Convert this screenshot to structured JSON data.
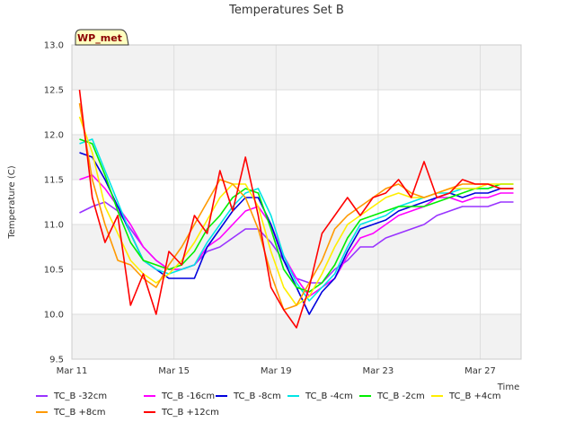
{
  "chart_data": {
    "type": "line",
    "title": "Temperatures Set B",
    "xlabel": "Time",
    "ylabel": "Temperature (C)",
    "badge": "WP_met",
    "xlim": [
      0,
      17.6
    ],
    "ylim": [
      9.5,
      13.0
    ],
    "y_ticks": [
      9.5,
      10.0,
      10.5,
      11.0,
      11.5,
      12.0,
      12.5,
      13.0
    ],
    "x_ticks": [
      {
        "value": 0,
        "label": "Mar 11"
      },
      {
        "value": 4,
        "label": "Mar 15"
      },
      {
        "value": 8,
        "label": "Mar 19"
      },
      {
        "value": 12,
        "label": "Mar 23"
      },
      {
        "value": 16,
        "label": "Mar 27"
      }
    ],
    "grid": true,
    "banded_background": true,
    "legend_position": "bottom",
    "x_day": [
      0.3,
      0.8,
      1.3,
      1.8,
      2.3,
      2.8,
      3.3,
      3.8,
      4.3,
      4.8,
      5.3,
      5.8,
      6.3,
      6.8,
      7.3,
      7.8,
      8.3,
      8.8,
      9.3,
      9.8,
      10.3,
      10.8,
      11.3,
      11.8,
      12.3,
      12.8,
      13.3,
      13.8,
      14.3,
      14.8,
      15.3,
      15.8,
      16.3,
      16.8,
      17.3
    ],
    "series": [
      {
        "name": "TC_B -32cm",
        "color": "#9933ff",
        "values": [
          11.13,
          11.2,
          11.25,
          11.15,
          10.95,
          10.75,
          10.6,
          10.5,
          10.5,
          10.55,
          10.7,
          10.75,
          10.85,
          10.95,
          10.95,
          10.8,
          10.6,
          10.4,
          10.35,
          10.35,
          10.5,
          10.6,
          10.75,
          10.75,
          10.85,
          10.9,
          10.95,
          11.0,
          11.1,
          11.15,
          11.2,
          11.2,
          11.2,
          11.25,
          11.25
        ]
      },
      {
        "name": "TC_B -16cm",
        "color": "#ff00ff",
        "values": [
          11.5,
          11.55,
          11.4,
          11.2,
          11.0,
          10.75,
          10.6,
          10.5,
          10.5,
          10.55,
          10.75,
          10.85,
          11.0,
          11.15,
          11.2,
          11.0,
          10.65,
          10.4,
          10.2,
          10.3,
          10.4,
          10.65,
          10.85,
          10.9,
          11.0,
          11.1,
          11.15,
          11.2,
          11.3,
          11.3,
          11.25,
          11.3,
          11.3,
          11.35,
          11.35
        ]
      },
      {
        "name": "TC_B -8cm",
        "color": "#0000dd",
        "values": [
          11.8,
          11.75,
          11.5,
          11.2,
          10.9,
          10.6,
          10.5,
          10.4,
          10.4,
          10.4,
          10.75,
          10.95,
          11.15,
          11.3,
          11.3,
          11.0,
          10.6,
          10.3,
          10.0,
          10.25,
          10.4,
          10.7,
          10.95,
          11.0,
          11.05,
          11.15,
          11.2,
          11.25,
          11.3,
          11.35,
          11.3,
          11.35,
          11.35,
          11.4,
          11.4
        ]
      },
      {
        "name": "TC_B -4cm",
        "color": "#00e5e5",
        "values": [
          11.9,
          11.95,
          11.6,
          11.25,
          10.9,
          10.6,
          10.5,
          10.45,
          10.5,
          10.55,
          10.8,
          11.0,
          11.2,
          11.35,
          11.4,
          11.1,
          10.65,
          10.35,
          10.15,
          10.3,
          10.45,
          10.75,
          11.0,
          11.05,
          11.1,
          11.2,
          11.25,
          11.3,
          11.35,
          11.35,
          11.4,
          11.4,
          11.4,
          11.45,
          11.45
        ]
      },
      {
        "name": "TC_B -2cm",
        "color": "#00ee00",
        "values": [
          11.95,
          11.9,
          11.55,
          11.15,
          10.8,
          10.6,
          10.55,
          10.5,
          10.55,
          10.7,
          10.95,
          11.1,
          11.3,
          11.4,
          11.35,
          10.95,
          10.5,
          10.3,
          10.25,
          10.35,
          10.55,
          10.85,
          11.05,
          11.1,
          11.15,
          11.2,
          11.2,
          11.2,
          11.25,
          11.3,
          11.35,
          11.4,
          11.4,
          11.45,
          11.45
        ]
      },
      {
        "name": "TC_B +4cm",
        "color": "#ffee00",
        "values": [
          12.2,
          11.8,
          11.2,
          10.9,
          10.6,
          10.45,
          10.35,
          10.45,
          10.6,
          10.8,
          11.05,
          11.3,
          11.45,
          11.45,
          11.2,
          10.7,
          10.3,
          10.1,
          10.2,
          10.45,
          10.75,
          11.0,
          11.1,
          11.2,
          11.3,
          11.35,
          11.3,
          11.3,
          11.35,
          11.4,
          11.4,
          11.4,
          11.45,
          11.45,
          11.45
        ]
      },
      {
        "name": "TC_B +8cm",
        "color": "#ff9900",
        "values": [
          12.35,
          11.5,
          11.0,
          10.6,
          10.55,
          10.4,
          10.3,
          10.55,
          10.75,
          11.0,
          11.25,
          11.5,
          11.45,
          11.3,
          10.95,
          10.45,
          10.05,
          10.1,
          10.35,
          10.6,
          10.95,
          11.1,
          11.2,
          11.3,
          11.4,
          11.45,
          11.35,
          11.3,
          11.35,
          11.4,
          11.45,
          11.45,
          11.45,
          11.4,
          11.4
        ]
      },
      {
        "name": "TC_B +12cm",
        "color": "#ff0000",
        "values": [
          12.5,
          11.3,
          10.8,
          11.1,
          10.1,
          10.45,
          10.0,
          10.7,
          10.55,
          11.1,
          10.9,
          11.6,
          11.15,
          11.75,
          11.1,
          10.3,
          10.05,
          9.85,
          10.3,
          10.9,
          11.1,
          11.3,
          11.1,
          11.3,
          11.35,
          11.5,
          11.3,
          11.7,
          11.3,
          11.35,
          11.5,
          11.45,
          11.45,
          11.4,
          11.4
        ]
      }
    ]
  }
}
